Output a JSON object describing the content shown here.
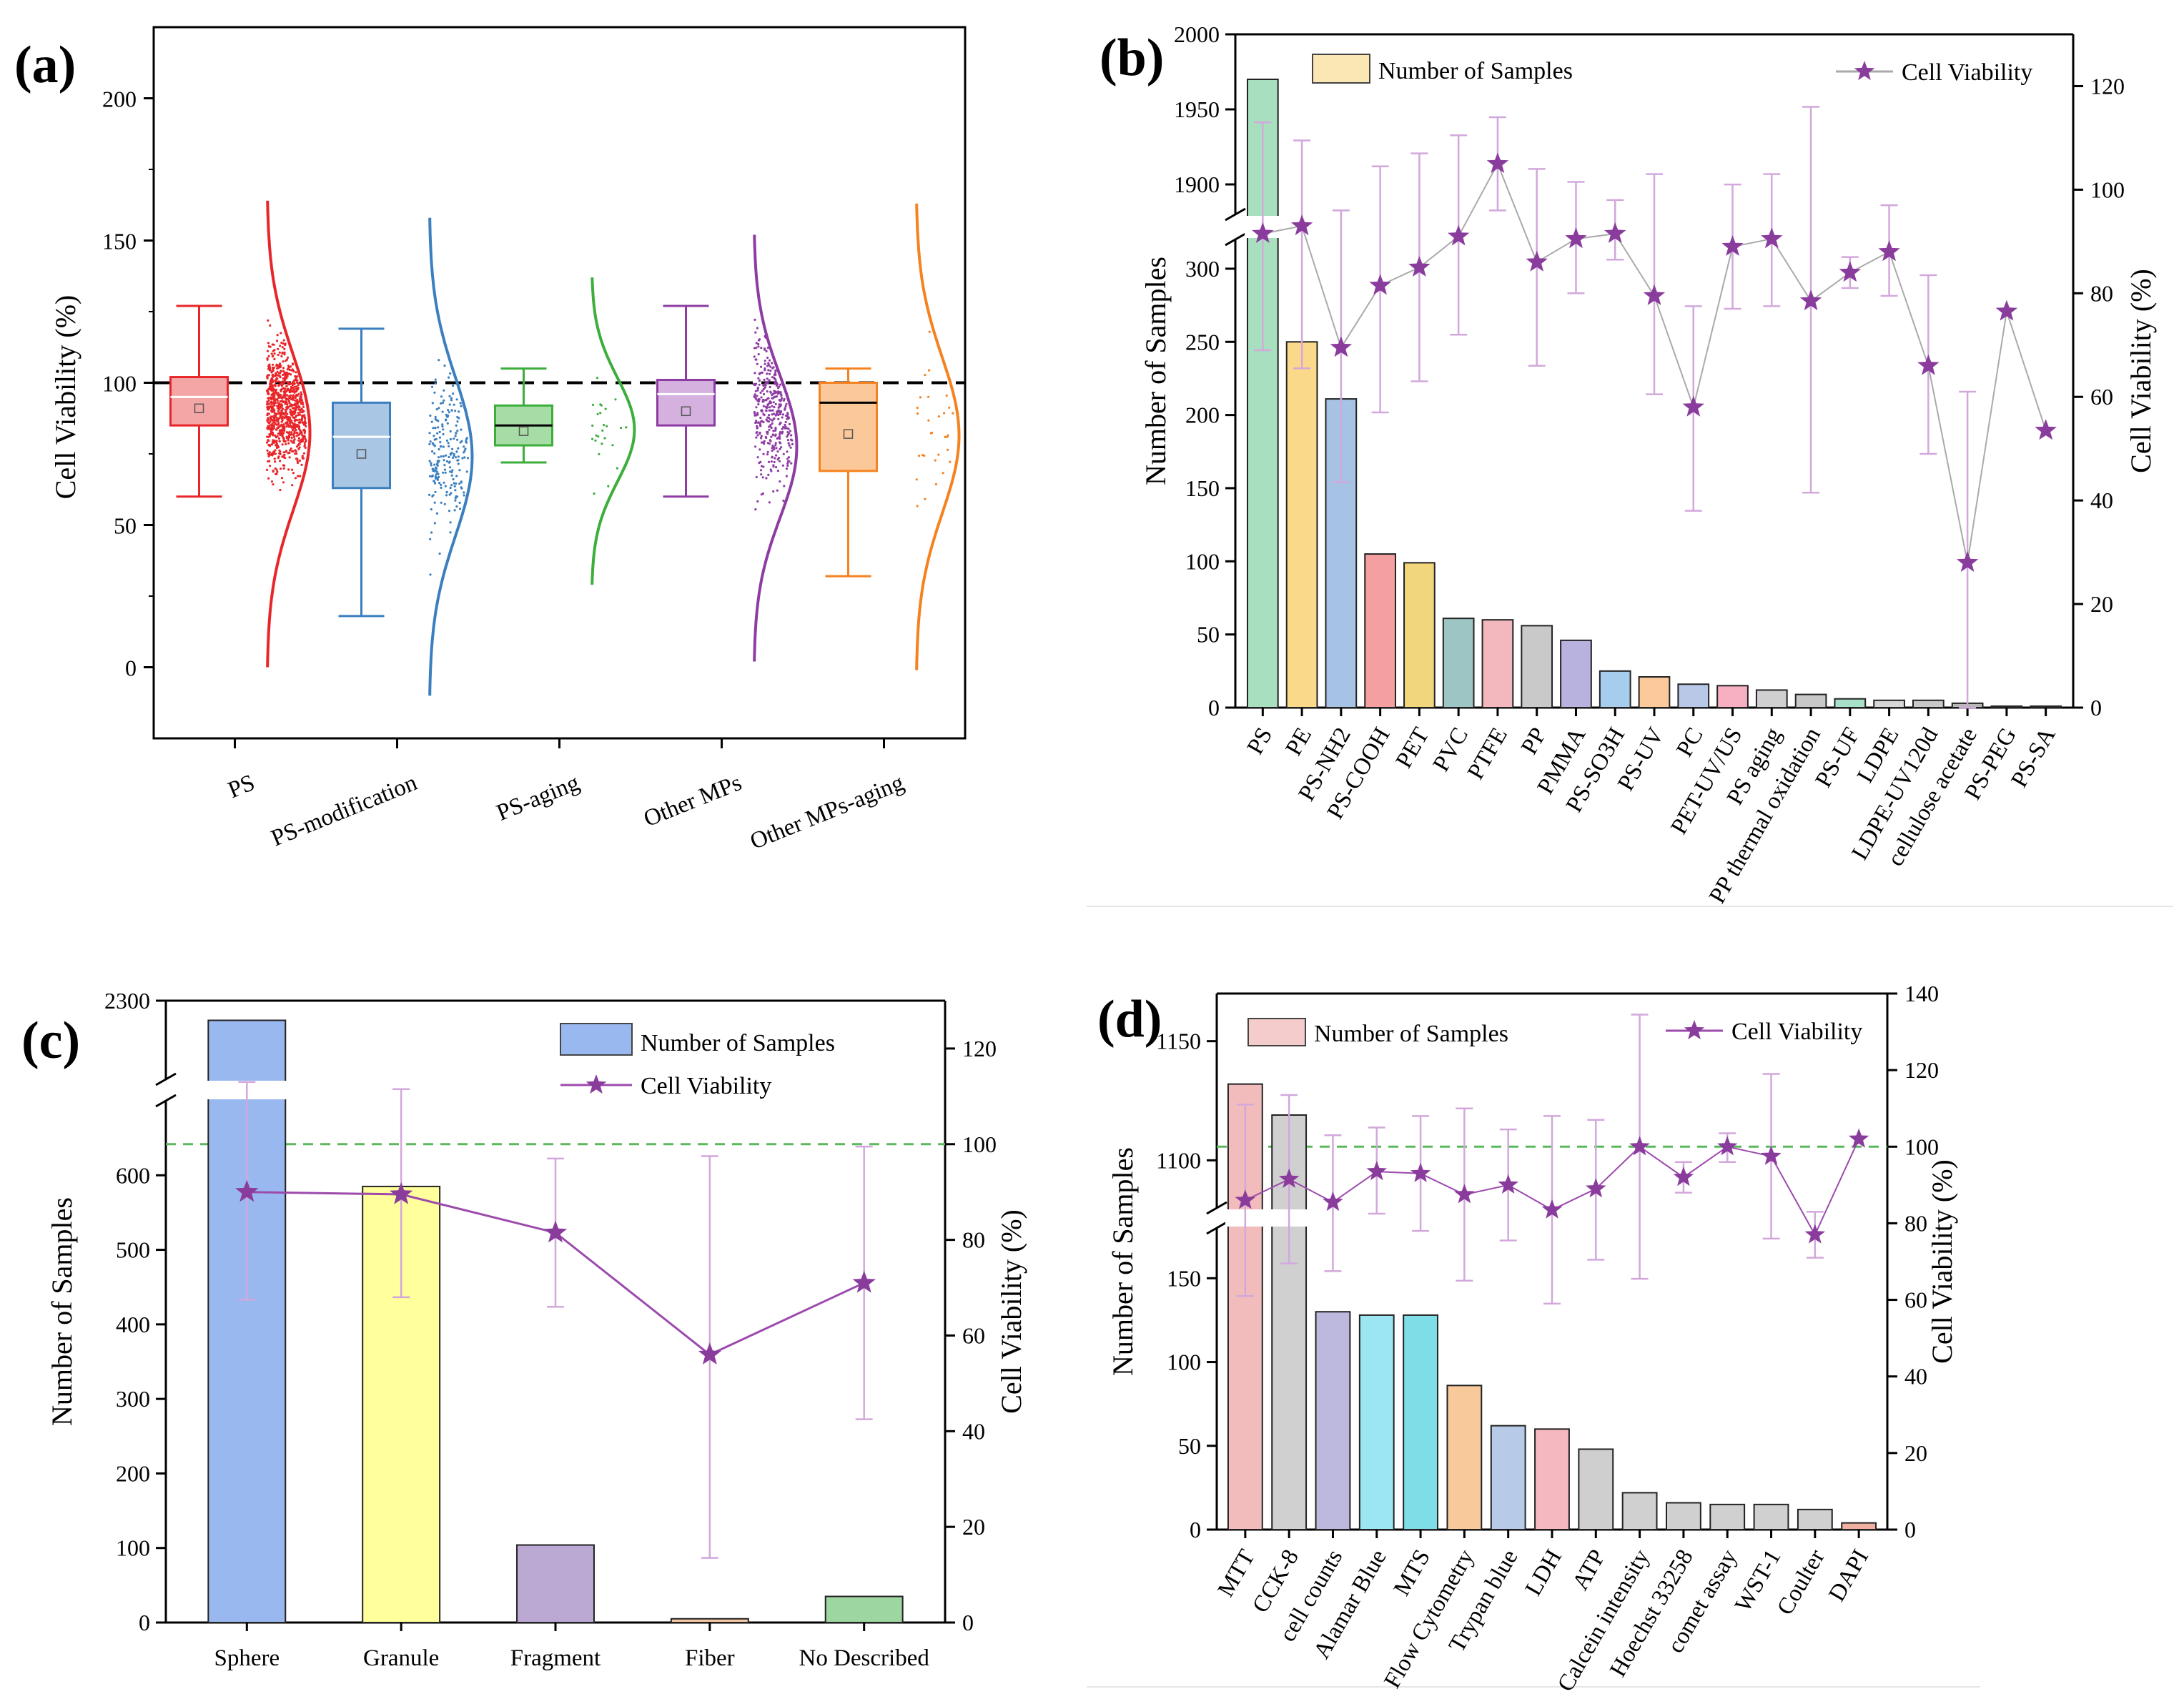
{
  "figure": {
    "panel_labels": [
      "(a)",
      "(b)",
      "(c)",
      "(d)"
    ]
  },
  "chart_data": [
    {
      "panel": "(a)",
      "type": "box",
      "ylabel": "Cell Viability (%)",
      "ylim": [
        -25,
        225
      ],
      "yticks": [
        "0",
        "50",
        "100",
        "150",
        "200"
      ],
      "reference_line": 100,
      "categories": [
        "PS",
        "PS-modification",
        "PS-aging",
        "Other MPs",
        "Other MPs-aging"
      ],
      "series": [
        {
          "name": "PS",
          "color": "#e8262a",
          "fill": "#f4a6a6",
          "whisker_low": 60,
          "q1": 85,
          "median": 95,
          "q3": 102,
          "whisker_high": 127,
          "mean": 91,
          "dist_min": 0,
          "dist_max": 165
        },
        {
          "name": "PS-modification",
          "color": "#3b7fbf",
          "fill": "#a9c6e4",
          "whisker_low": 18,
          "q1": 63,
          "median": 81,
          "q3": 93,
          "whisker_high": 119,
          "mean": 75,
          "dist_min": -10,
          "dist_max": 158
        },
        {
          "name": "PS-aging",
          "color": "#3cae3c",
          "fill": "#a6dca6",
          "whisker_low": 72,
          "q1": 78,
          "median": 85,
          "q3": 92,
          "whisker_high": 105,
          "mean": 83,
          "dist_min": 29,
          "dist_max": 138
        },
        {
          "name": "Other MPs",
          "color": "#8e3ca3",
          "fill": "#d4b1df",
          "whisker_low": 60,
          "q1": 85,
          "median": 96,
          "q3": 101,
          "whisker_high": 127,
          "mean": 90,
          "dist_min": 2,
          "dist_max": 153
        },
        {
          "name": "Other MPs-aging",
          "color": "#f5821f",
          "fill": "#fbc999",
          "whisker_low": 32,
          "q1": 69,
          "median": 93,
          "q3": 100,
          "whisker_high": 105,
          "mean": 82,
          "dist_min": -1,
          "dist_max": 164
        }
      ]
    },
    {
      "panel": "(b)",
      "type": "bar+line",
      "ylabel": "Number of Samples",
      "y2label": "Cell Viability (%)",
      "y_lower_range": [
        0,
        320
      ],
      "y_upper_range": [
        1880,
        2000
      ],
      "yticks_lower": [
        "0",
        "50",
        "100",
        "150",
        "200",
        "250",
        "300"
      ],
      "yticks_upper": [
        "1900",
        "1950",
        "2000"
      ],
      "y2lim": [
        0,
        130
      ],
      "y2ticks": [
        "0",
        "20",
        "40",
        "60",
        "80",
        "100",
        "120"
      ],
      "legend": [
        "Number of Samples",
        "Cell Viability"
      ],
      "categories": [
        "PS",
        "PE",
        "PS-NH2",
        "PS-COOH",
        "PET",
        "PVC",
        "PTFE",
        "PP",
        "PMMA",
        "PS-SO3H",
        "PS-UV",
        "PC",
        "PET-UV/US",
        "PS aging",
        "PP thermal oxidation",
        "PS-UF",
        "LDPE",
        "LDPE-UV120d",
        "cellulose acetate",
        "PS-PEG",
        "PS-SA"
      ],
      "samples": [
        1970,
        250,
        211,
        105,
        99,
        61,
        60,
        56,
        46,
        25,
        21,
        16,
        15,
        12,
        9,
        6,
        5,
        5,
        3,
        1,
        1
      ],
      "viability": [
        91.5,
        93,
        69.5,
        81.5,
        85,
        91,
        105,
        86,
        90.5,
        91.5,
        79.5,
        58,
        89,
        90.5,
        78.5,
        84,
        88,
        66,
        28,
        76.5,
        53.5
      ],
      "viability_err_low": [
        69,
        65.5,
        43.5,
        57,
        63,
        72,
        96,
        66,
        80,
        86.5,
        60.5,
        38,
        77,
        77.5,
        41.5,
        87,
        79.5,
        49,
        0,
        null,
        null
      ],
      "viability_err_high": [
        113,
        109.5,
        96,
        104.5,
        107,
        110.5,
        114,
        104,
        101.5,
        98,
        103,
        77.5,
        101,
        103,
        116,
        81,
        97,
        83.5,
        61,
        null,
        null
      ],
      "bar_colors": [
        "#a8e0bf",
        "#fbd98a",
        "#a6c3e6",
        "#f4a0a0",
        "#f1d67c",
        "#9cc5c3",
        "#f2b8be",
        "#c9c9c9",
        "#b7b3de",
        "#a6cdee",
        "#fbc99a",
        "#b9c8e6",
        "#f7b0c2",
        "#d0d0d0",
        "#c8c8c8",
        "#a8e0c8",
        "#d6d6d6",
        "#c8c8c8",
        "#b8b8b8",
        "#b8b8b8",
        "#b8b8b8"
      ]
    },
    {
      "panel": "(c)",
      "type": "bar+line",
      "ylabel": "Number of Samples",
      "y2label": "Cell Viability (%)",
      "y_lower_range": [
        0,
        700
      ],
      "y_upper_range": [
        2100,
        2300
      ],
      "yticks_lower": [
        "0",
        "100",
        "200",
        "300",
        "400",
        "500",
        "600"
      ],
      "yticks_upper": [
        "2300"
      ],
      "y2lim": [
        0,
        130
      ],
      "y2ticks": [
        "0",
        "20",
        "40",
        "60",
        "80",
        "100",
        "120"
      ],
      "reference_line": 100,
      "legend": [
        "Number of Samples",
        "Cell Viability"
      ],
      "categories": [
        "Sphere",
        "Granule",
        "Fragment",
        "Fiber",
        "No Described"
      ],
      "samples": [
        2250,
        585,
        104,
        5,
        35
      ],
      "viability": [
        90,
        89.5,
        81.5,
        56,
        71
      ],
      "viability_err_low": [
        67.5,
        68,
        66,
        13.5,
        42.5
      ],
      "viability_err_high": [
        113,
        111.5,
        97,
        97.5,
        99.5
      ],
      "bar_colors": [
        "#9ab8f0",
        "#ffff9b",
        "#bca9d3",
        "#f8c9a6",
        "#9dd6a0"
      ]
    },
    {
      "panel": "(d)",
      "type": "bar+line",
      "ylabel": "Number of Samples",
      "y2label": "Cell Viability (%)",
      "y_lower_range": [
        0,
        180
      ],
      "y_upper_range": [
        1080,
        1170
      ],
      "yticks_lower": [
        "0",
        "50",
        "100",
        "150"
      ],
      "yticks_upper": [
        "1100",
        "1150"
      ],
      "y2lim": [
        0,
        140
      ],
      "y2ticks": [
        "0",
        "20",
        "40",
        "60",
        "80",
        "100",
        "120",
        "140"
      ],
      "reference_line": 100,
      "legend": [
        "Number of Samples",
        "Cell Viability"
      ],
      "categories": [
        "MTT",
        "CCK-8",
        "cell counts",
        "Alamar Blue",
        "MTS",
        "Flow Cytometry",
        "Trypan blue",
        "LDH",
        "ATP",
        "Calcein intensity",
        "Hoechst 33258",
        "comet assay",
        "WST-1",
        "Coulter",
        "DAPI"
      ],
      "samples": [
        1132,
        1119,
        130,
        128,
        128,
        86,
        62,
        60,
        48,
        22,
        16,
        15,
        15,
        12,
        4
      ],
      "viability": [
        86,
        91.5,
        85.5,
        93.5,
        93,
        87.5,
        90,
        83.5,
        89,
        100,
        92,
        100,
        97.5,
        77,
        102
      ],
      "viability_err_low": [
        61,
        69.5,
        67.5,
        82.5,
        78,
        65,
        75.5,
        59,
        70.5,
        65.5,
        88,
        96,
        76,
        71,
        null
      ],
      "viability_err_high": [
        111,
        113.5,
        103,
        105,
        108,
        110,
        104.5,
        108,
        107,
        134.5,
        96,
        103.5,
        119,
        83,
        null
      ],
      "bar_colors": [
        "#f2bcbc",
        "#d0d0d0",
        "#bdb8de",
        "#9be6f2",
        "#7fdde8",
        "#f8c99a",
        "#b7cbe8",
        "#f6b8c0",
        "#cfcfcf",
        "#d0d0d0",
        "#d0d0d0",
        "#d0d0d0",
        "#d0d0d0",
        "#d0d0d0",
        "#f2b0a0"
      ]
    }
  ],
  "colors": {
    "viability_line": "#a070b0",
    "viability_marker": "#8a3c9c",
    "reference_dashed_green": "#5cb85c"
  }
}
